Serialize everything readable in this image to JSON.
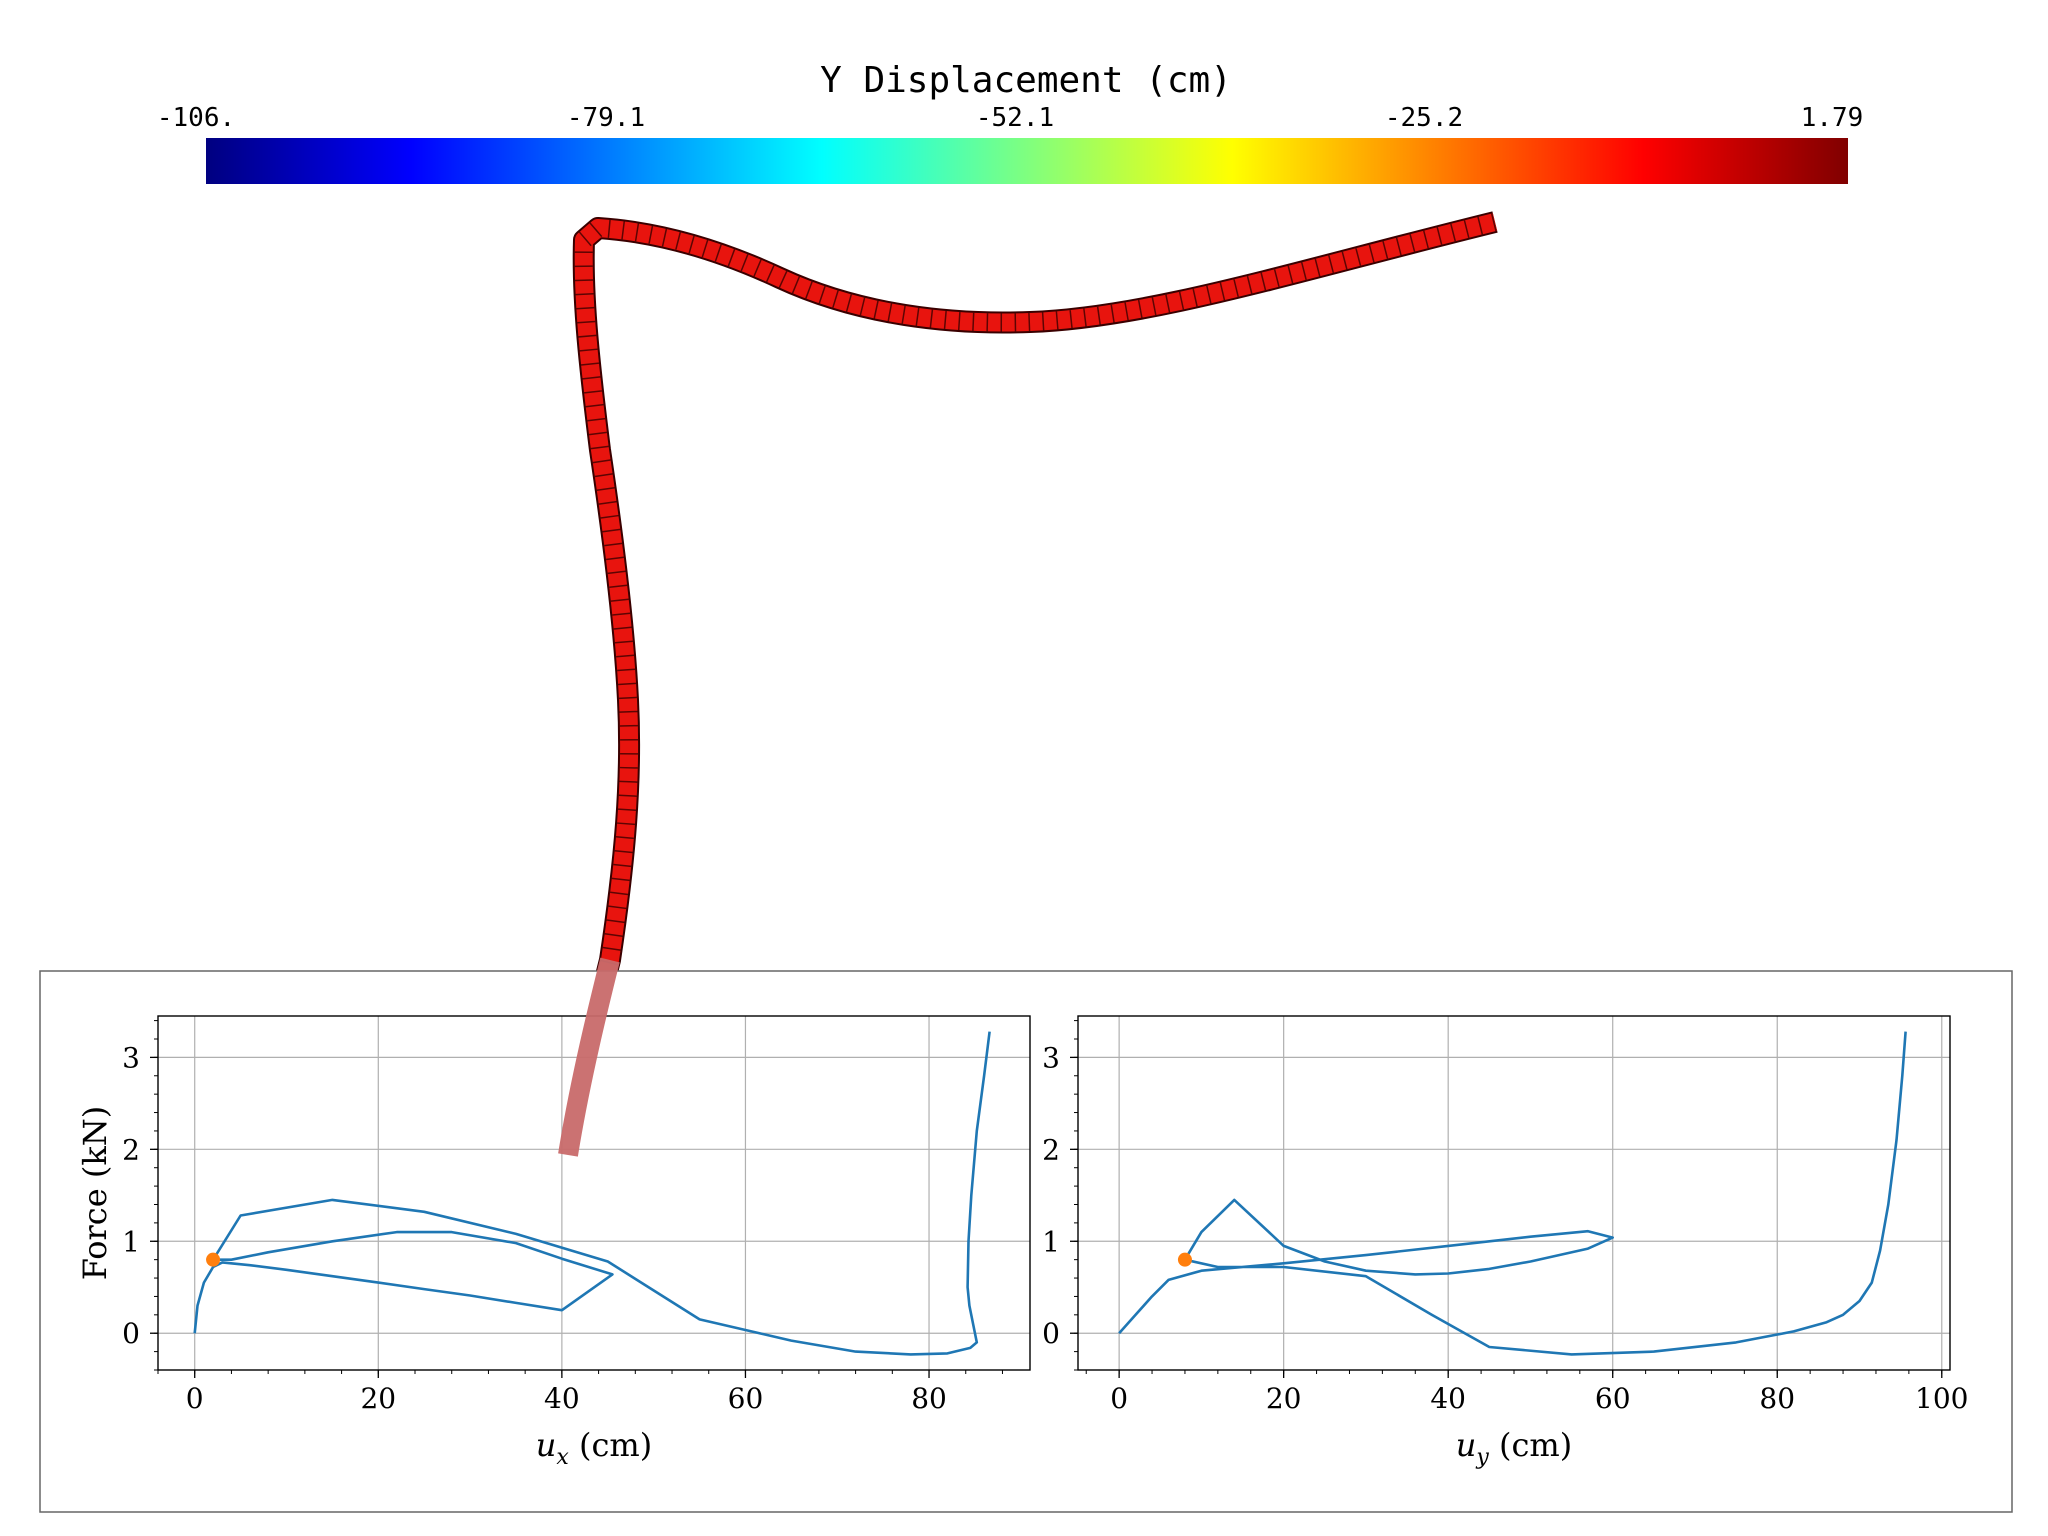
{
  "colorbar": {
    "title": "Y Displacement (cm)",
    "tick_labels": [
      "-106.",
      "-79.1",
      "-52.1",
      "-25.2",
      "1.79"
    ],
    "range": [
      -106,
      1.79
    ],
    "colormap": "jet"
  },
  "beam": {
    "color": "#e8140e",
    "edge_color": "#3a0000",
    "faded_tip_color": "#c86a6a"
  },
  "chart_data": [
    {
      "type": "line",
      "title": "",
      "xlabel": "u_x (cm)",
      "xlabel_var": "u",
      "xlabel_sub": "x",
      "xlabel_unit": " (cm)",
      "ylabel": "Force (kN)",
      "xlim": [
        -4,
        91
      ],
      "ylim": [
        -0.4,
        3.45
      ],
      "xticks": [
        0,
        20,
        40,
        60,
        80
      ],
      "yticks": [
        0,
        1,
        2,
        3
      ],
      "grid": true,
      "line_color": "#1f77b4",
      "marker_color": "#ff7f0e",
      "series": [
        {
          "x": [
            0,
            0.3,
            1,
            2,
            3,
            6,
            10,
            15,
            20,
            25,
            30,
            35,
            40,
            45.5,
            40,
            35,
            28,
            22,
            15,
            8,
            4,
            2,
            5,
            15,
            25,
            35,
            45,
            55,
            65,
            72,
            78,
            82,
            84.5,
            85.2,
            84.8,
            84.4,
            84.2,
            84.3,
            84.6,
            85.2,
            86.0,
            86.6
          ],
          "y": [
            0,
            0.3,
            0.55,
            0.72,
            0.77,
            0.74,
            0.69,
            0.62,
            0.55,
            0.48,
            0.41,
            0.33,
            0.25,
            0.64,
            0.81,
            0.98,
            1.1,
            1.1,
            1.0,
            0.88,
            0.8,
            0.8,
            1.28,
            1.45,
            1.32,
            1.08,
            0.78,
            0.15,
            -0.08,
            -0.2,
            -0.23,
            -0.22,
            -0.16,
            -0.1,
            0.1,
            0.3,
            0.5,
            1.0,
            1.5,
            2.2,
            2.8,
            3.28
          ]
        }
      ],
      "marker": {
        "x": 2,
        "y": 0.8
      }
    },
    {
      "type": "line",
      "title": "",
      "xlabel": "u_y (cm)",
      "xlabel_var": "u",
      "xlabel_sub": "y",
      "xlabel_unit": " (cm)",
      "ylabel": "",
      "xlim": [
        -5,
        101
      ],
      "ylim": [
        -0.4,
        3.45
      ],
      "xticks": [
        0,
        20,
        40,
        60,
        80,
        100
      ],
      "yticks": [
        0,
        1,
        2,
        3
      ],
      "grid": true,
      "line_color": "#1f77b4",
      "marker_color": "#ff7f0e",
      "series": [
        {
          "x": [
            0,
            2,
            4,
            6,
            10,
            20,
            30,
            40,
            50,
            57,
            60,
            57,
            50,
            45,
            40,
            36,
            30,
            25,
            20,
            14,
            10,
            8,
            12,
            20,
            30,
            38,
            45,
            55,
            65,
            75,
            82,
            86,
            88,
            90,
            91.5,
            92.5,
            93.5,
            94.5,
            95.2,
            95.6
          ],
          "y": [
            0,
            0.2,
            0.4,
            0.58,
            0.68,
            0.76,
            0.85,
            0.95,
            1.05,
            1.11,
            1.04,
            0.92,
            0.78,
            0.7,
            0.65,
            0.64,
            0.68,
            0.78,
            0.95,
            1.45,
            1.1,
            0.8,
            0.72,
            0.72,
            0.62,
            0.2,
            -0.15,
            -0.23,
            -0.2,
            -0.1,
            0.02,
            0.12,
            0.2,
            0.35,
            0.55,
            0.9,
            1.4,
            2.1,
            2.8,
            3.28
          ]
        }
      ],
      "marker": {
        "x": 8,
        "y": 0.8
      }
    }
  ]
}
